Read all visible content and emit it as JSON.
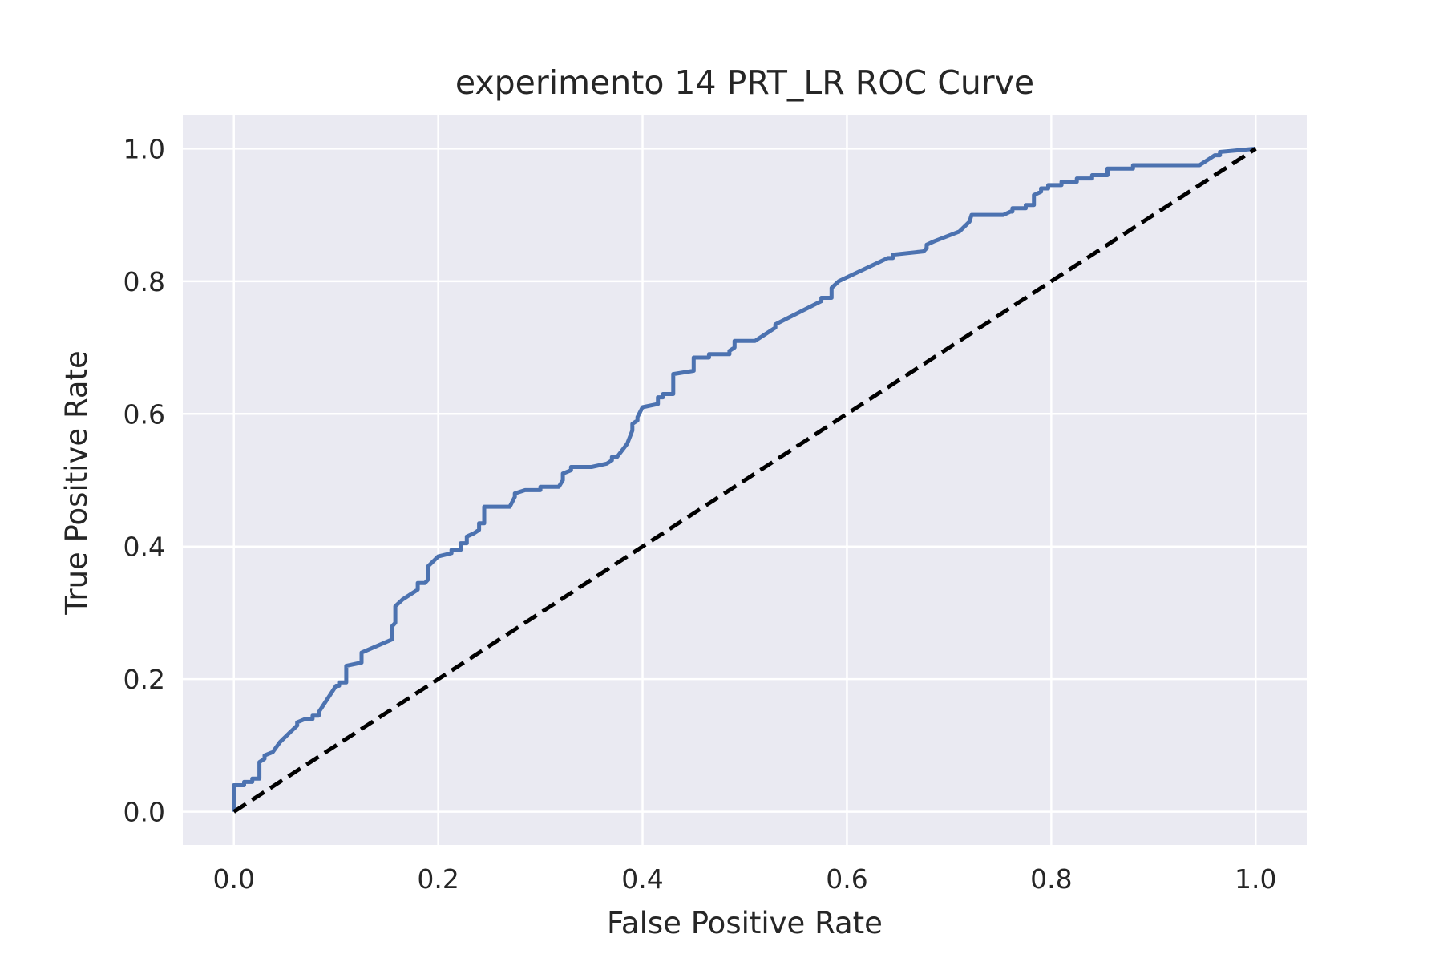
{
  "chart_data": {
    "type": "line",
    "title": "experimento 14 PRT_LR ROC Curve",
    "xlabel": "False Positive Rate",
    "ylabel": "True Positive Rate",
    "xlim": [
      -0.05,
      1.05
    ],
    "ylim": [
      -0.05,
      1.05
    ],
    "x_ticks": [
      "0.0",
      "0.2",
      "0.4",
      "0.6",
      "0.8",
      "1.0"
    ],
    "y_ticks": [
      "0.0",
      "0.2",
      "0.4",
      "0.6",
      "0.8",
      "1.0"
    ],
    "grid": true,
    "background_color": "#eaeaf2",
    "grid_color": "#ffffff",
    "series": [
      {
        "color": "#4c72b0",
        "style": "solid",
        "x": [
          0.0,
          0.0,
          0.01,
          0.01,
          0.018,
          0.018,
          0.025,
          0.025,
          0.03,
          0.03,
          0.038,
          0.045,
          0.055,
          0.062,
          0.062,
          0.07,
          0.077,
          0.077,
          0.083,
          0.083,
          0.1,
          0.103,
          0.103,
          0.11,
          0.11,
          0.125,
          0.125,
          0.155,
          0.155,
          0.158,
          0.158,
          0.165,
          0.18,
          0.18,
          0.187,
          0.19,
          0.19,
          0.2,
          0.213,
          0.213,
          0.222,
          0.222,
          0.228,
          0.228,
          0.235,
          0.24,
          0.24,
          0.245,
          0.245,
          0.27,
          0.275,
          0.275,
          0.285,
          0.3,
          0.3,
          0.318,
          0.322,
          0.322,
          0.33,
          0.33,
          0.35,
          0.365,
          0.37,
          0.37,
          0.375,
          0.385,
          0.39,
          0.39,
          0.395,
          0.395,
          0.4,
          0.4,
          0.415,
          0.415,
          0.42,
          0.42,
          0.43,
          0.43,
          0.45,
          0.45,
          0.465,
          0.465,
          0.485,
          0.485,
          0.49,
          0.49,
          0.51,
          0.52,
          0.53,
          0.53,
          0.575,
          0.575,
          0.585,
          0.585,
          0.592,
          0.64,
          0.645,
          0.645,
          0.675,
          0.678,
          0.678,
          0.685,
          0.71,
          0.72,
          0.722,
          0.75,
          0.753,
          0.76,
          0.762,
          0.762,
          0.775,
          0.775,
          0.783,
          0.783,
          0.79,
          0.79,
          0.797,
          0.797,
          0.81,
          0.81,
          0.825,
          0.825,
          0.84,
          0.84,
          0.855,
          0.855,
          0.88,
          0.88,
          0.945,
          0.955,
          0.96,
          0.965,
          0.965,
          1.0
        ],
        "y": [
          0.0,
          0.04,
          0.04,
          0.045,
          0.045,
          0.05,
          0.05,
          0.075,
          0.08,
          0.085,
          0.09,
          0.105,
          0.12,
          0.13,
          0.135,
          0.14,
          0.14,
          0.145,
          0.145,
          0.15,
          0.19,
          0.19,
          0.195,
          0.195,
          0.22,
          0.225,
          0.24,
          0.26,
          0.28,
          0.285,
          0.31,
          0.32,
          0.335,
          0.345,
          0.345,
          0.35,
          0.37,
          0.385,
          0.39,
          0.395,
          0.395,
          0.405,
          0.405,
          0.415,
          0.42,
          0.425,
          0.435,
          0.435,
          0.46,
          0.46,
          0.475,
          0.48,
          0.485,
          0.485,
          0.49,
          0.49,
          0.5,
          0.51,
          0.515,
          0.52,
          0.52,
          0.525,
          0.53,
          0.535,
          0.535,
          0.555,
          0.575,
          0.585,
          0.59,
          0.595,
          0.61,
          0.61,
          0.615,
          0.625,
          0.625,
          0.63,
          0.63,
          0.66,
          0.665,
          0.685,
          0.685,
          0.69,
          0.69,
          0.695,
          0.7,
          0.71,
          0.71,
          0.72,
          0.73,
          0.735,
          0.77,
          0.775,
          0.775,
          0.79,
          0.8,
          0.835,
          0.835,
          0.84,
          0.845,
          0.85,
          0.855,
          0.86,
          0.875,
          0.89,
          0.9,
          0.9,
          0.9,
          0.905,
          0.905,
          0.91,
          0.91,
          0.915,
          0.915,
          0.93,
          0.935,
          0.94,
          0.94,
          0.945,
          0.945,
          0.95,
          0.95,
          0.955,
          0.955,
          0.96,
          0.96,
          0.97,
          0.97,
          0.975,
          0.975,
          0.985,
          0.99,
          0.99,
          0.995,
          1.0
        ]
      },
      {
        "color": "#000000",
        "style": "dashed",
        "x": [
          0.0,
          1.0
        ],
        "y": [
          0.0,
          1.0
        ]
      }
    ]
  }
}
